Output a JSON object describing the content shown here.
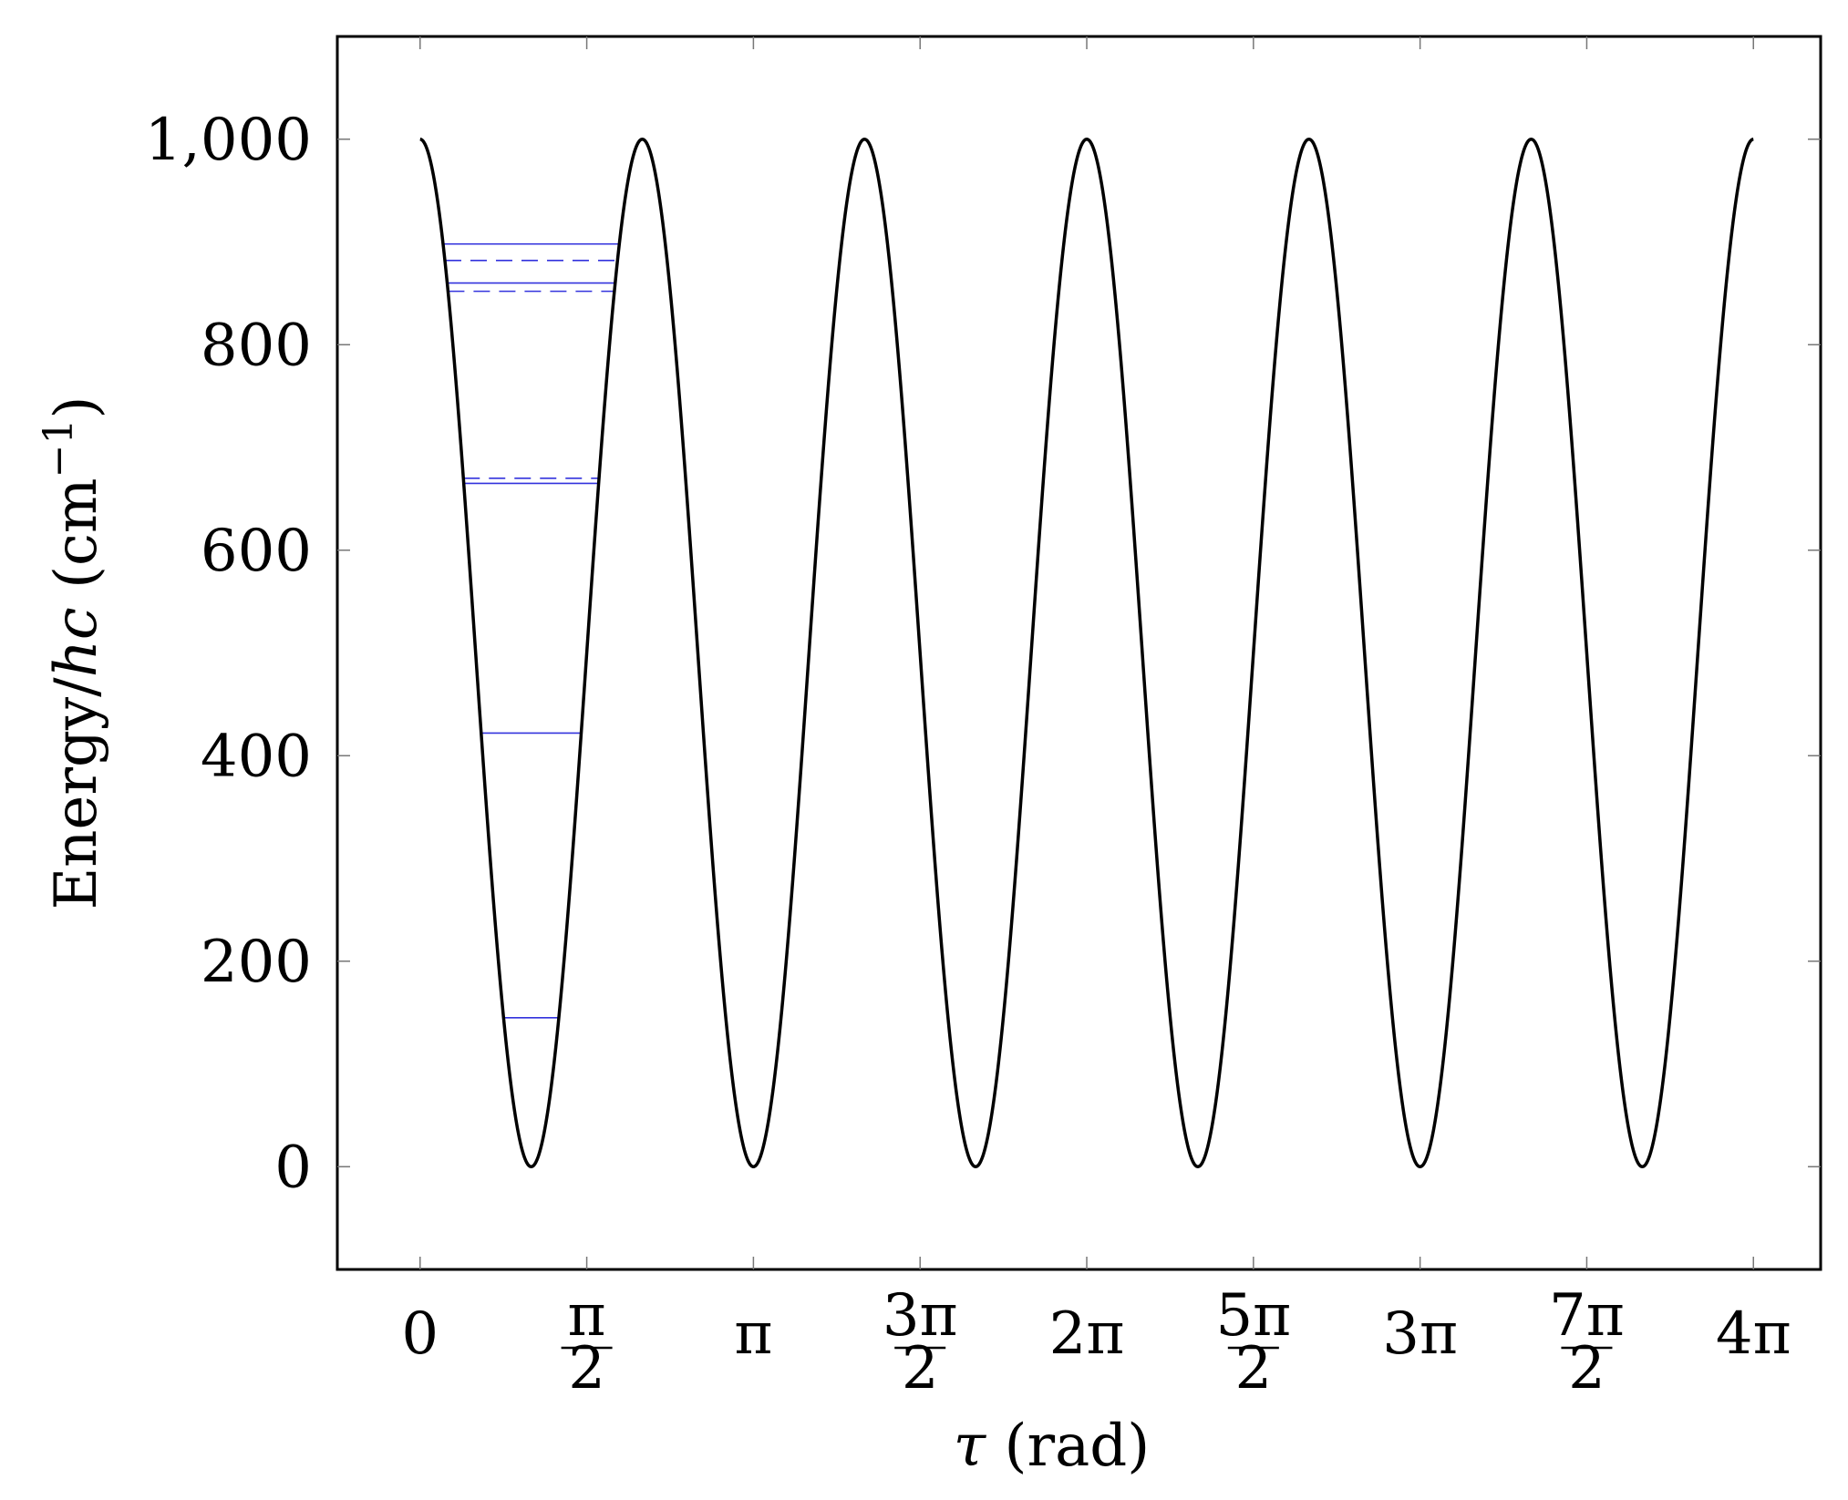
{
  "chart_data": {
    "type": "line",
    "title": "",
    "xlabel": {
      "symbol": "τ",
      "unit": " (rad)"
    },
    "ylabel": {
      "prefix": "Energy/",
      "var": "hc",
      "unit": " (cm",
      "exp": "−1",
      "close": ")"
    },
    "xlim": [
      -0.78,
      13.2
    ],
    "ylim": [
      -100,
      1100
    ],
    "grid": false,
    "legend": "none",
    "x_ticks": [
      {
        "value": 0,
        "whole": "0"
      },
      {
        "value": 1.5708,
        "num": "π",
        "den": "2"
      },
      {
        "value": 3.1416,
        "whole": "π"
      },
      {
        "value": 4.7124,
        "num": "3π",
        "den": "2"
      },
      {
        "value": 6.2832,
        "whole": "2π"
      },
      {
        "value": 7.854,
        "num": "5π",
        "den": "2"
      },
      {
        "value": 9.4248,
        "whole": "3π"
      },
      {
        "value": 10.9956,
        "num": "7π",
        "den": "2"
      },
      {
        "value": 12.5664,
        "whole": "4π"
      }
    ],
    "y_ticks": [
      {
        "value": 0,
        "label": "0"
      },
      {
        "value": 200,
        "label": "200"
      },
      {
        "value": 400,
        "label": "400"
      },
      {
        "value": 600,
        "label": "600"
      },
      {
        "value": 800,
        "label": "800"
      },
      {
        "value": 1000,
        "label": "1,000"
      }
    ],
    "series": [
      {
        "style": "solid",
        "color": "#000000",
        "formula": "500*(1+cos(3*tau))",
        "domain": [
          0,
          12.5664
        ],
        "min_energy": 0,
        "max_energy": 1000
      }
    ],
    "energy_levels": {
      "color": "#3333dd",
      "levels": [
        {
          "energy": 145,
          "style": "solid"
        },
        {
          "energy": 422,
          "style": "solid"
        },
        {
          "energy": 665,
          "style": "solid"
        },
        {
          "energy": 670,
          "style": "dashed"
        },
        {
          "energy": 852,
          "style": "dashed"
        },
        {
          "energy": 860,
          "style": "solid"
        },
        {
          "energy": 882,
          "style": "dashed"
        },
        {
          "energy": 898,
          "style": "solid"
        }
      ]
    }
  }
}
